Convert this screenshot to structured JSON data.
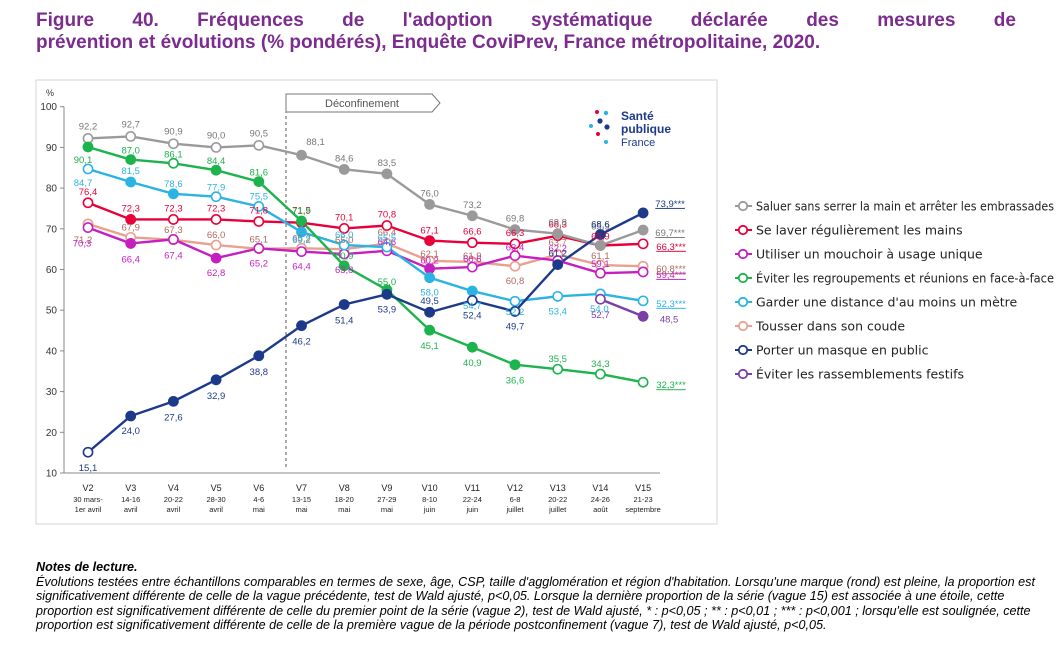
{
  "title": {
    "words": [
      "Figure",
      "40.",
      "Fréquences",
      "de",
      "l'adoption",
      "systématique",
      "déclarée",
      "des",
      "mesures",
      "de"
    ],
    "line2": "prévention et évolutions (% pondérés), Enquête CoviPrev, France métropolitaine, 2020."
  },
  "logo": {
    "line1": "Santé",
    "line2": "publique",
    "line3": "France"
  },
  "annotation": "Déconfinement",
  "colors": {
    "saluer": "#9A9A9A",
    "laver": "#E8003A",
    "mouchoir": "#C51FC0",
    "regroupements": "#1DB34D",
    "distance": "#2BB3E3",
    "tousser": "#E8A090",
    "masque": "#1D3A8A",
    "festifs": "#7B3FA6"
  },
  "chart_data": {
    "type": "line",
    "ylabel": "%",
    "ylim": [
      10,
      100
    ],
    "yticks": [
      "10",
      "20",
      "30",
      "40",
      "50",
      "60",
      "70",
      "80",
      "90",
      "100"
    ],
    "categories": [
      {
        "wave": "V2",
        "d1": "30 mars-",
        "d2": "1er avril"
      },
      {
        "wave": "V3",
        "d1": "14-16",
        "d2": "avril"
      },
      {
        "wave": "V4",
        "d1": "20-22",
        "d2": "avril"
      },
      {
        "wave": "V5",
        "d1": "28-30",
        "d2": "avril"
      },
      {
        "wave": "V6",
        "d1": "4-6",
        "d2": "mai"
      },
      {
        "wave": "V7",
        "d1": "13-15",
        "d2": "mai"
      },
      {
        "wave": "V8",
        "d1": "18-20",
        "d2": "mai"
      },
      {
        "wave": "V9",
        "d1": "27-29",
        "d2": "mai"
      },
      {
        "wave": "V10",
        "d1": "8-10",
        "d2": "juin"
      },
      {
        "wave": "V11",
        "d1": "22-24",
        "d2": "juin"
      },
      {
        "wave": "V12",
        "d1": "6-8",
        "d2": "juillet"
      },
      {
        "wave": "V13",
        "d1": "20-22",
        "d2": "juillet"
      },
      {
        "wave": "V14",
        "d1": "24-26",
        "d2": "août"
      },
      {
        "wave": "V15",
        "d1": "21-23",
        "d2": "septembre"
      }
    ],
    "series": [
      {
        "key": "saluer",
        "name": "Saluer sans serrer la main et arrêter les embrassades",
        "values": [
          92.2,
          92.7,
          90.9,
          90.0,
          90.5,
          88.1,
          84.6,
          83.5,
          76.0,
          73.2,
          69.8,
          68.8,
          65.9,
          69.7
        ],
        "labels": [
          "92,2",
          "92,7",
          "90,9",
          "90,0",
          "90,5",
          "88,1",
          "84,6",
          "83,5",
          "76,0",
          "73,2",
          "69,8",
          "68,8",
          "65,9",
          "69,7***"
        ],
        "filled": [
          false,
          false,
          false,
          false,
          false,
          true,
          true,
          true,
          true,
          true,
          true,
          true,
          true,
          true
        ]
      },
      {
        "key": "laver",
        "name": "Se laver régulièrement les mains",
        "values": [
          76.4,
          72.3,
          72.3,
          72.3,
          71.8,
          71.5,
          70.1,
          70.8,
          67.1,
          66.6,
          66.3,
          68.3,
          65.9,
          66.3
        ],
        "labels": [
          "76,4",
          "72,3",
          "72,3",
          "72,3",
          "71,8",
          "71,5",
          "70,1",
          "70,8",
          "67,1",
          "66,6",
          "66,3",
          "68,3",
          "65,9",
          "66,3***"
        ],
        "filled": [
          false,
          true,
          false,
          false,
          false,
          false,
          false,
          false,
          true,
          false,
          false,
          false,
          false,
          false
        ]
      },
      {
        "key": "mouchoir",
        "name": "Utiliser un mouchoir à usage unique",
        "values": [
          70.3,
          66.4,
          67.4,
          62.8,
          65.2,
          64.4,
          63.8,
          64.6,
          60.2,
          60.6,
          63.4,
          62.2,
          59.1,
          59.4
        ],
        "labels": [
          "70,3",
          "66,4",
          "67,4",
          "62,8",
          "65,2",
          "64,4",
          "63,8",
          "64,6",
          "60,2",
          "60,6",
          "63,4",
          "62,2",
          "59,1",
          "59,4***"
        ],
        "filled": [
          false,
          true,
          false,
          true,
          false,
          false,
          false,
          false,
          true,
          false,
          false,
          false,
          false,
          false
        ]
      },
      {
        "key": "regroupements",
        "name": "Éviter les regroupements et réunions en face-à-face",
        "values": [
          90.1,
          87.0,
          86.1,
          84.4,
          81.6,
          71.9,
          60.9,
          55.0,
          45.1,
          40.9,
          36.6,
          35.5,
          34.3,
          32.3
        ],
        "labels": [
          "90,1",
          "87,0",
          "86,1",
          "84,4",
          "81,6",
          "71,9",
          "60,9",
          "55,0",
          "45,1",
          "40,9",
          "36,6",
          "35,5",
          "34,3",
          "32,3***"
        ],
        "filled": [
          true,
          true,
          false,
          true,
          true,
          true,
          true,
          true,
          true,
          true,
          true,
          false,
          false,
          false
        ]
      },
      {
        "key": "distance",
        "name": "Garder une distance d'au moins un mètre",
        "values": [
          84.7,
          81.5,
          78.6,
          77.9,
          75.5,
          69.2,
          66.0,
          65.5,
          58.0,
          54.7,
          52.2,
          53.4,
          54.0,
          52.3
        ],
        "labels": [
          "84,7",
          "81,5",
          "78,6",
          "77,9",
          "75,5",
          "69,2",
          "66,0",
          "65,5",
          "58,0",
          "54,7",
          "52,2",
          "53,4",
          "54,0",
          "52,3***"
        ],
        "filled": [
          false,
          true,
          true,
          false,
          false,
          true,
          false,
          false,
          true,
          true,
          false,
          false,
          false,
          false
        ]
      },
      {
        "key": "tousser",
        "name": "Tousser dans son coude",
        "values": [
          71.2,
          67.9,
          67.3,
          66.0,
          65.1,
          65.2,
          65.0,
          66.4,
          62.1,
          61.9,
          60.8,
          63.7,
          61.1,
          60.8
        ],
        "labels": [
          "71,2",
          "67,9",
          "67,3",
          "66,0",
          "65,1",
          "65,2",
          "65,0",
          "66,4",
          "62,1",
          "61,9",
          "60,8",
          "63,7",
          "61,1",
          "60,8***"
        ],
        "filled": [
          false,
          false,
          false,
          false,
          false,
          false,
          false,
          false,
          false,
          false,
          false,
          false,
          false,
          false
        ]
      },
      {
        "key": "masque",
        "name": "Porter un masque en public",
        "values": [
          15.1,
          24.0,
          27.6,
          32.9,
          38.8,
          46.2,
          51.4,
          53.9,
          49.5,
          52.4,
          49.7,
          61.2,
          68.6,
          73.9
        ],
        "labels": [
          "15,1",
          "24,0",
          "27,6",
          "32,9",
          "38,8",
          "46,2",
          "51,4",
          "53,9",
          "49,5",
          "52,4",
          "49,7",
          "61,2",
          "68,6",
          "73,9***"
        ],
        "filled": [
          false,
          true,
          true,
          true,
          true,
          true,
          true,
          true,
          true,
          false,
          false,
          true,
          true,
          true
        ]
      },
      {
        "key": "festifs",
        "name": "Éviter les rassemblements festifs",
        "values": [
          null,
          null,
          null,
          null,
          null,
          null,
          null,
          null,
          null,
          null,
          null,
          null,
          52.7,
          48.5
        ],
        "labels": [
          "",
          "",
          "",
          "",
          "",
          "",
          "",
          "",
          "",
          "",
          "",
          "",
          "52,7",
          "48,5"
        ],
        "filled": [
          false,
          false,
          false,
          false,
          false,
          false,
          false,
          false,
          false,
          false,
          false,
          false,
          false,
          true
        ]
      }
    ]
  },
  "notes": {
    "title": "Notes de lecture.",
    "body": "Évolutions testées entre échantillons comparables en termes de sexe, âge, CSP, taille d'agglomération et région d'habitation. Lorsqu'une marque (rond) est pleine, la proportion est significativement différente de celle de la vague précédente, test de Wald ajusté, p<0,05. Lorsque la dernière proportion de la série (vague 15) est associée à une étoile, cette proportion est significativement différente de celle du premier point de la série (vague 2), test de Wald ajusté, * : p<0,05 ; ** : p<0,01 ; *** : p<0,001 ; lorsqu'elle est soulignée, cette proportion est significativement différente de celle de la première vague de la période postconfinement (vague 7), test de Wald ajusté, p<0,05."
  }
}
